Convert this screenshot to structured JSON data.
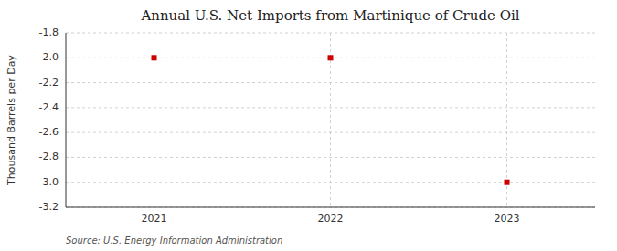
{
  "chart_data": {
    "type": "scatter",
    "title": "Annual U.S. Net Imports from Martinique of Crude Oil",
    "y_label": "Thousand Barrels per Day",
    "source": "Source: U.S. Energy Information Administration",
    "x": [
      2021,
      2022,
      2023
    ],
    "values": [
      -2.0,
      -2.0,
      -3.0
    ],
    "xlim": [
      2020.5,
      2023.5
    ],
    "ylim": [
      -3.2,
      -1.8
    ],
    "xticks": [
      2021,
      2022,
      2023
    ],
    "yticks": [
      -3.2,
      {
        "value": -3.0,
        "label": "-3.0"
      },
      -2.8,
      -2.6,
      -2.4,
      -2.2,
      {
        "value": -2.0,
        "label": "-2.0"
      },
      -1.8
    ],
    "color": "#cc0000",
    "marker": "square",
    "grid": true
  }
}
